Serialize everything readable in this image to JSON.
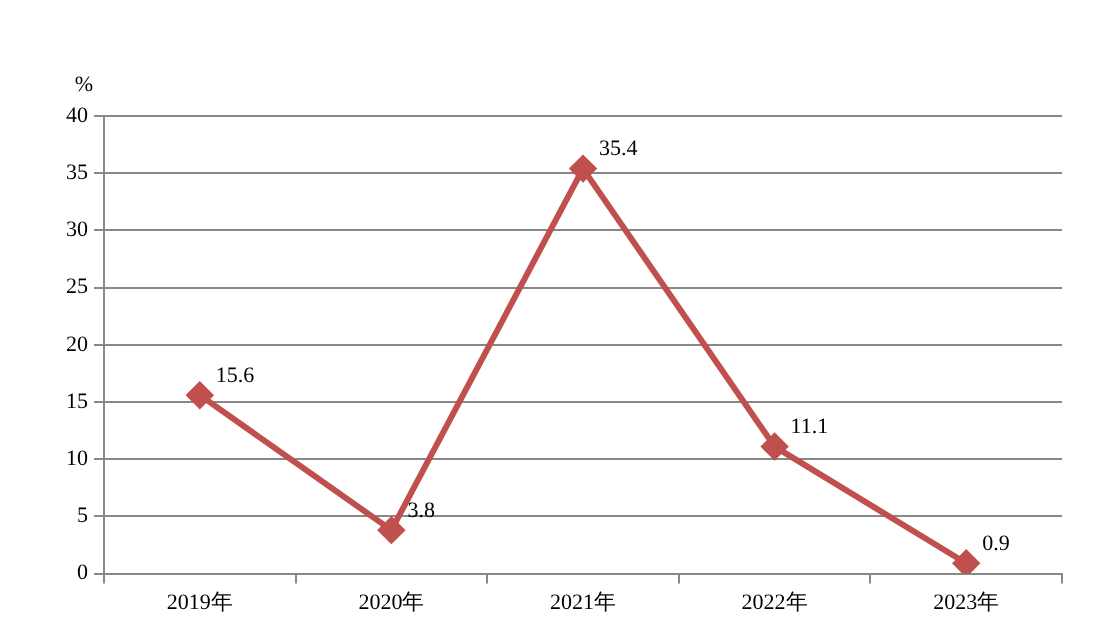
{
  "chart_data": {
    "type": "line",
    "ylabel": "%",
    "categories": [
      "2019年",
      "2020年",
      "2021年",
      "2022年",
      "2023年"
    ],
    "series": [
      {
        "color": "#c0504d",
        "values": [
          15.6,
          3.8,
          35.4,
          11.1,
          0.9
        ]
      }
    ],
    "ylim": [
      0,
      40
    ],
    "yticks": [
      0,
      5,
      10,
      15,
      20,
      25,
      30,
      35,
      40
    ],
    "grid": "y",
    "legend": false,
    "marker": "diamond",
    "line_style": "solid",
    "data_labels": true
  }
}
